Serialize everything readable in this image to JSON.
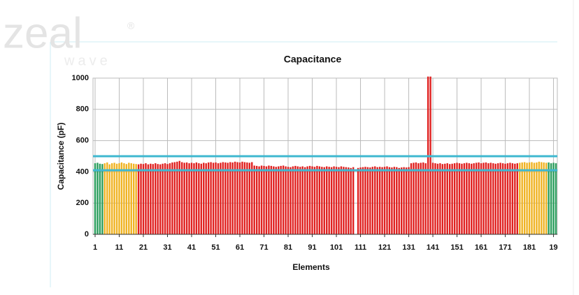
{
  "watermark": {
    "brand": "zeal",
    "sub": "wave",
    "mark": "®"
  },
  "chart_data": {
    "type": "bar",
    "title": "Capacitance",
    "xlabel": "Elements",
    "ylabel": "Capacitance (pF)",
    "categories": [
      "1",
      null,
      null,
      null,
      null,
      null,
      null,
      null,
      null,
      null,
      "11",
      null,
      null,
      null,
      null,
      null,
      null,
      null,
      null,
      null,
      "21",
      null,
      null,
      null,
      null,
      null,
      null,
      null,
      null,
      null,
      "31",
      null,
      null,
      null,
      null,
      null,
      null,
      null,
      null,
      null,
      "41",
      null,
      null,
      null,
      null,
      null,
      null,
      null,
      null,
      null,
      "51",
      null,
      null,
      null,
      null,
      null,
      null,
      null,
      null,
      null,
      "61",
      null,
      null,
      null,
      null,
      null,
      null,
      null,
      null,
      null,
      "71",
      null,
      null,
      null,
      null,
      null,
      null,
      null,
      null,
      null,
      "81",
      null,
      null,
      null,
      null,
      null,
      null,
      null,
      null,
      null,
      "91",
      null,
      null,
      null,
      null,
      null,
      null,
      null,
      null,
      null,
      "101",
      null,
      null,
      null,
      null,
      null,
      null,
      null,
      null,
      null,
      "111",
      null,
      null,
      null,
      null,
      null,
      null,
      null,
      null,
      null,
      "121",
      null,
      null,
      null,
      null,
      null,
      null,
      null,
      null,
      null,
      "131",
      null,
      null,
      null,
      null,
      null,
      null,
      null,
      null,
      null,
      "141",
      null,
      null,
      null,
      null,
      null,
      null,
      null,
      null,
      null,
      "151",
      null,
      null,
      null,
      null,
      null,
      null,
      null,
      null,
      null,
      "161",
      null,
      null,
      null,
      null,
      null,
      null,
      null,
      null,
      null,
      "171",
      null,
      null,
      null,
      null,
      null,
      null,
      null,
      null,
      null,
      "181",
      null,
      null,
      null,
      null,
      null,
      null,
      null,
      null,
      null,
      "19",
      null
    ],
    "values": [
      455,
      458,
      452,
      450,
      455,
      460,
      448,
      455,
      458,
      452,
      455,
      460,
      455,
      450,
      458,
      455,
      452,
      450,
      448,
      452,
      450,
      455,
      448,
      452,
      450,
      455,
      450,
      448,
      452,
      455,
      450,
      455,
      460,
      462,
      465,
      470,
      462,
      458,
      460,
      455,
      458,
      455,
      460,
      455,
      452,
      458,
      455,
      460,
      462,
      458,
      460,
      455,
      458,
      462,
      460,
      458,
      462,
      460,
      465,
      462,
      460,
      465,
      462,
      460,
      458,
      462,
      440,
      438,
      435,
      440,
      438,
      435,
      440,
      438,
      435,
      432,
      435,
      438,
      440,
      435,
      432,
      430,
      435,
      438,
      435,
      432,
      435,
      430,
      435,
      438,
      435,
      432,
      438,
      435,
      432,
      430,
      435,
      432,
      430,
      435,
      432,
      430,
      435,
      432,
      430,
      428,
      425,
      430,
      null,
      425,
      428,
      430,
      432,
      430,
      428,
      432,
      435,
      430,
      432,
      430,
      432,
      435,
      430,
      428,
      432,
      430,
      425,
      428,
      430,
      428,
      430,
      455,
      458,
      460,
      455,
      458,
      460,
      455,
      1010,
      1010,
      458,
      455,
      452,
      455,
      450,
      452,
      455,
      450,
      452,
      455,
      458,
      455,
      452,
      455,
      458,
      455,
      452,
      455,
      458,
      460,
      455,
      458,
      460,
      455,
      458,
      455,
      452,
      455,
      458,
      455,
      452,
      455,
      458,
      455,
      452,
      455,
      458,
      460,
      462,
      458,
      460,
      462,
      458,
      460,
      465,
      462,
      460,
      458,
      460,
      455,
      458,
      455
    ],
    "colors": [
      "#2a9d5c",
      "#2a9d5c",
      "#2a9d5c",
      "#2a9d5c",
      "#f0b323",
      "#f0b323",
      "#f0b323",
      "#f0b323",
      "#f0b323",
      "#f0b323",
      "#f0b323",
      "#f0b323",
      "#f0b323",
      "#f0b323",
      "#f0b323",
      "#f0b323",
      "#f0b323",
      "#f0b323",
      "#e0201f",
      "#e0201f",
      "#e0201f",
      "#e0201f",
      "#e0201f",
      "#e0201f",
      "#e0201f",
      "#e0201f",
      "#e0201f",
      "#e0201f",
      "#e0201f",
      "#e0201f",
      "#e0201f",
      "#e0201f",
      "#e0201f",
      "#e0201f",
      "#e0201f",
      "#e0201f",
      "#e0201f",
      "#e0201f",
      "#e0201f",
      "#e0201f",
      "#e0201f",
      "#e0201f",
      "#e0201f",
      "#e0201f",
      "#e0201f",
      "#e0201f",
      "#e0201f",
      "#e0201f",
      "#e0201f",
      "#e0201f",
      "#e0201f",
      "#e0201f",
      "#e0201f",
      "#e0201f",
      "#e0201f",
      "#e0201f",
      "#e0201f",
      "#e0201f",
      "#e0201f",
      "#e0201f",
      "#e0201f",
      "#e0201f",
      "#e0201f",
      "#e0201f",
      "#e0201f",
      "#e0201f",
      "#e0201f",
      "#e0201f",
      "#e0201f",
      "#e0201f",
      "#e0201f",
      "#e0201f",
      "#e0201f",
      "#e0201f",
      "#e0201f",
      "#e0201f",
      "#e0201f",
      "#e0201f",
      "#e0201f",
      "#e0201f",
      "#e0201f",
      "#e0201f",
      "#e0201f",
      "#e0201f",
      "#e0201f",
      "#e0201f",
      "#e0201f",
      "#e0201f",
      "#e0201f",
      "#e0201f",
      "#e0201f",
      "#e0201f",
      "#e0201f",
      "#e0201f",
      "#e0201f",
      "#e0201f",
      "#e0201f",
      "#e0201f",
      "#e0201f",
      "#e0201f",
      "#e0201f",
      "#e0201f",
      "#e0201f",
      "#e0201f",
      "#e0201f",
      "#e0201f",
      "#e0201f",
      "#e0201f",
      "#e0201f",
      "#e0201f",
      "#e0201f",
      "#e0201f",
      "#e0201f",
      "#e0201f",
      "#e0201f",
      "#e0201f",
      "#e0201f",
      "#e0201f",
      "#e0201f",
      "#e0201f",
      "#e0201f",
      "#e0201f",
      "#e0201f",
      "#e0201f",
      "#e0201f",
      "#e0201f",
      "#e0201f",
      "#e0201f",
      "#e0201f",
      "#e0201f",
      "#e0201f",
      "#e0201f",
      "#e0201f",
      "#e0201f",
      "#e0201f",
      "#e0201f",
      "#e0201f",
      "#e0201f",
      "#e0201f",
      "#e0201f",
      "#e0201f",
      "#e0201f",
      "#e0201f",
      "#e0201f",
      "#e0201f",
      "#e0201f",
      "#e0201f",
      "#e0201f",
      "#e0201f",
      "#e0201f",
      "#e0201f",
      "#e0201f",
      "#e0201f",
      "#e0201f",
      "#e0201f",
      "#e0201f",
      "#e0201f",
      "#e0201f",
      "#e0201f",
      "#e0201f",
      "#e0201f",
      "#e0201f",
      "#e0201f",
      "#e0201f",
      "#e0201f",
      "#e0201f",
      "#e0201f",
      "#e0201f",
      "#e0201f",
      "#e0201f",
      "#e0201f",
      "#e0201f",
      "#e0201f",
      "#e0201f",
      "#e0201f",
      "#e0201f",
      "#f0b323",
      "#f0b323",
      "#f0b323",
      "#f0b323",
      "#f0b323",
      "#f0b323",
      "#f0b323",
      "#f0b323",
      "#f0b323",
      "#f0b323",
      "#f0b323",
      "#f0b323",
      "#2a9d5c",
      "#2a9d5c",
      "#2a9d5c",
      "#2a9d5c"
    ],
    "hlines": [
      {
        "value": 500,
        "color": "#3fb8d0"
      },
      {
        "value": 410,
        "color": "#3fb8d0"
      }
    ],
    "ylim": [
      0,
      1000
    ],
    "yticks": [
      0,
      200,
      400,
      600,
      800,
      1000
    ],
    "grid": true
  }
}
